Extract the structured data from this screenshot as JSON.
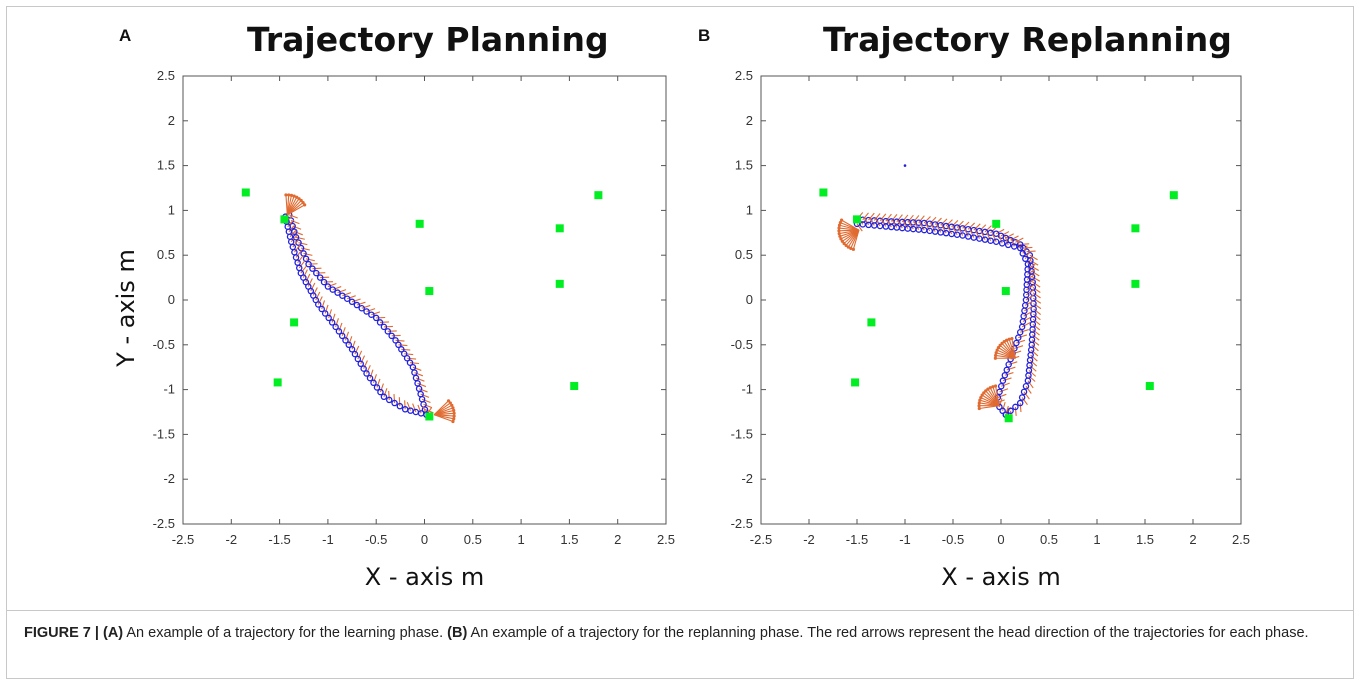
{
  "figure": {
    "caption": {
      "label": "FIGURE 7 |",
      "part_a_tag": "(A)",
      "part_a_text": " An example of a trajectory for the learning phase. ",
      "part_b_tag": "(B)",
      "part_b_text": " An example of a trajectory for the replanning phase. The red arrows represent the head direction of the trajectories for each phase."
    }
  },
  "colors": {
    "trajectory": "#2222dd",
    "arrows": "#e06a30",
    "landmarks": "#00ee22",
    "axes": "#555555"
  },
  "chart_data": [
    {
      "panel_letter": "A",
      "type": "scatter",
      "title": "Trajectory Planning",
      "xlabel": "X - axis m",
      "ylabel": "Y - axis m",
      "xlim": [
        -2.5,
        2.5
      ],
      "ylim": [
        -2.5,
        2.5
      ],
      "xticks": [
        "-2.5",
        "-2",
        "-1.5",
        "-1",
        "-0.5",
        "0",
        "0.5",
        "1",
        "1.5",
        "2",
        "2.5"
      ],
      "yticks": [
        "2.5",
        "2",
        "1.5",
        "1",
        "0.5",
        "0",
        "-0.5",
        "-1",
        "-1.5",
        "-2",
        "-2.5"
      ],
      "grid": false,
      "landmarks": [
        {
          "x": -1.85,
          "y": 1.2
        },
        {
          "x": -1.45,
          "y": 0.9
        },
        {
          "x": -0.05,
          "y": 0.85
        },
        {
          "x": 0.05,
          "y": 0.1
        },
        {
          "x": -1.35,
          "y": -0.25
        },
        {
          "x": -1.52,
          "y": -0.92
        },
        {
          "x": 1.4,
          "y": 0.8
        },
        {
          "x": 1.4,
          "y": 0.18
        },
        {
          "x": 1.8,
          "y": 1.17
        },
        {
          "x": 1.55,
          "y": -0.96
        },
        {
          "x": 0.05,
          "y": -1.3
        }
      ],
      "trajectories": [
        {
          "name": "",
          "points": [
            [
              -1.4,
              0.95
            ],
            [
              -1.33,
              0.7
            ],
            [
              -1.2,
              0.4
            ],
            [
              -1.0,
              0.15
            ],
            [
              -0.75,
              -0.02
            ],
            [
              -0.5,
              -0.2
            ],
            [
              -0.3,
              -0.45
            ],
            [
              -0.12,
              -0.75
            ],
            [
              -0.04,
              -1.05
            ],
            [
              0.02,
              -1.28
            ]
          ]
        },
        {
          "name": "",
          "points": [
            [
              0.02,
              -1.28
            ],
            [
              -0.2,
              -1.22
            ],
            [
              -0.42,
              -1.08
            ],
            [
              -0.6,
              -0.82
            ],
            [
              -0.75,
              -0.55
            ],
            [
              -0.92,
              -0.3
            ],
            [
              -1.1,
              -0.05
            ],
            [
              -1.28,
              0.3
            ],
            [
              -1.38,
              0.65
            ],
            [
              -1.44,
              0.93
            ]
          ]
        }
      ],
      "arrow_bursts": [
        {
          "x": -1.42,
          "y": 0.95,
          "from_deg": 30,
          "to_deg": 100
        },
        {
          "x": 0.1,
          "y": -1.28,
          "from_deg": -20,
          "to_deg": 50
        }
      ]
    },
    {
      "panel_letter": "B",
      "type": "scatter",
      "title": "Trajectory Replanning",
      "xlabel": "X - axis m",
      "ylabel": "",
      "xlim": [
        -2.5,
        2.5
      ],
      "ylim": [
        -2.5,
        2.5
      ],
      "xticks": [
        "-2.5",
        "-2",
        "-1.5",
        "-1",
        "-0.5",
        "0",
        "0.5",
        "1",
        "1.5",
        "2",
        "2.5"
      ],
      "yticks": [
        "2.5",
        "2",
        "1.5",
        "1",
        "0.5",
        "0",
        "-0.5",
        "-1",
        "-1.5",
        "-2",
        "-2.5"
      ],
      "grid": false,
      "landmarks": [
        {
          "x": -1.85,
          "y": 1.2
        },
        {
          "x": -1.5,
          "y": 0.9
        },
        {
          "x": -0.05,
          "y": 0.85
        },
        {
          "x": 0.05,
          "y": 0.1
        },
        {
          "x": -1.35,
          "y": -0.25
        },
        {
          "x": -1.52,
          "y": -0.92
        },
        {
          "x": 1.4,
          "y": 0.8
        },
        {
          "x": 1.4,
          "y": 0.18
        },
        {
          "x": 1.8,
          "y": 1.17
        },
        {
          "x": 1.55,
          "y": -0.96
        },
        {
          "x": 0.08,
          "y": -1.32
        }
      ],
      "trajectories": [
        {
          "name": "",
          "points": [
            [
              -1.5,
              0.9
            ],
            [
              -1.2,
              0.88
            ],
            [
              -0.8,
              0.86
            ],
            [
              -0.4,
              0.8
            ],
            [
              -0.05,
              0.74
            ],
            [
              0.2,
              0.62
            ],
            [
              0.3,
              0.5
            ],
            [
              0.33,
              0.2
            ],
            [
              0.34,
              -0.1
            ],
            [
              0.32,
              -0.5
            ],
            [
              0.28,
              -0.9
            ],
            [
              0.2,
              -1.15
            ],
            [
              0.05,
              -1.28
            ]
          ]
        },
        {
          "name": "",
          "points": [
            [
              0.05,
              -1.28
            ],
            [
              -0.05,
              -1.15
            ],
            [
              0.02,
              -0.9
            ],
            [
              0.12,
              -0.6
            ],
            [
              0.22,
              -0.3
            ],
            [
              0.26,
              0.0
            ],
            [
              0.28,
              0.4
            ],
            [
              0.2,
              0.58
            ],
            [
              -0.05,
              0.65
            ],
            [
              -0.4,
              0.72
            ],
            [
              -0.8,
              0.78
            ],
            [
              -1.2,
              0.82
            ],
            [
              -1.5,
              0.85
            ]
          ]
        }
      ],
      "arrow_bursts": [
        {
          "x": -1.48,
          "y": 0.78,
          "from_deg": 150,
          "to_deg": 260
        },
        {
          "x": -0.02,
          "y": -1.18,
          "from_deg": 100,
          "to_deg": 190
        },
        {
          "x": 0.15,
          "y": -0.65,
          "from_deg": 100,
          "to_deg": 180
        }
      ],
      "stray_points": [
        {
          "x": -1.0,
          "y": 1.5
        }
      ]
    }
  ]
}
